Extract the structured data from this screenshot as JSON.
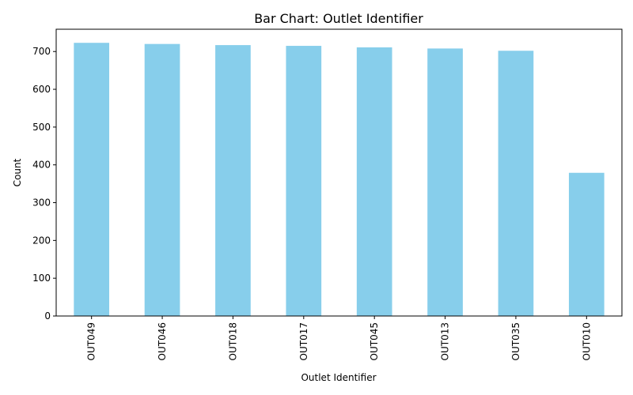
{
  "chart_data": {
    "type": "bar",
    "title": "Bar Chart: Outlet Identifier",
    "xlabel": "Outlet Identifier",
    "ylabel": "Count",
    "categories": [
      "OUT049",
      "OUT046",
      "OUT018",
      "OUT017",
      "OUT045",
      "OUT013",
      "OUT035",
      "OUT010"
    ],
    "values": [
      723,
      720,
      717,
      715,
      711,
      708,
      702,
      379
    ],
    "ylim": [
      0,
      759
    ],
    "yticks": [
      0,
      100,
      200,
      300,
      400,
      500,
      600,
      700
    ],
    "bar_color": "#87ceeb",
    "grid": false,
    "legend": "none"
  }
}
